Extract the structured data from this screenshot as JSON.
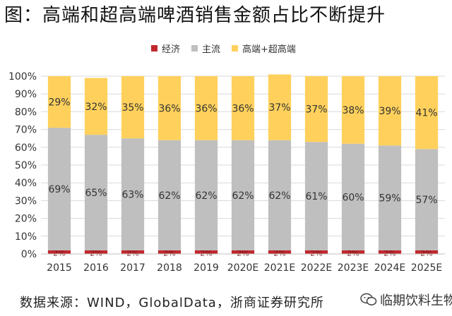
{
  "title": "图：高端和超高端啤酒销售金额占比不断提升",
  "source": "数据来源：WIND，GlobalData，浙商证券研究所",
  "watermark": "临期饮料生物",
  "colors": {
    "jingji": "#c0272d",
    "zhuliu": "#bfbfbf",
    "gaoduan": "#ffd15c",
    "grid": "#d9d9d9",
    "axis_text": "#333333"
  },
  "chart_data": {
    "type": "bar",
    "stacked": true,
    "categories": [
      "2015",
      "2016",
      "2017",
      "2018",
      "2019",
      "2020E",
      "2021E",
      "2022E",
      "2023E",
      "2024E",
      "2025E"
    ],
    "series": [
      {
        "name": "经济",
        "color": "#c0272d",
        "values": [
          2,
          2,
          2,
          2,
          2,
          2,
          2,
          2,
          2,
          2,
          2
        ],
        "labels": [
          "2%",
          "2%",
          "2%",
          "2%",
          "2%",
          "2%",
          "2%",
          "2%",
          "2%",
          "2%",
          "2%"
        ]
      },
      {
        "name": "主流",
        "color": "#bfbfbf",
        "values": [
          69,
          65,
          63,
          62,
          62,
          62,
          62,
          61,
          60,
          59,
          57
        ],
        "labels": [
          "69%",
          "65%",
          "63%",
          "62%",
          "62%",
          "62%",
          "62%",
          "61%",
          "60%",
          "59%",
          "57%"
        ]
      },
      {
        "name": "高端+超高端",
        "color": "#ffd15c",
        "values": [
          29,
          32,
          35,
          36,
          36,
          36,
          37,
          37,
          38,
          39,
          41
        ],
        "labels": [
          "29%",
          "32%",
          "35%",
          "36%",
          "36%",
          "36%",
          "37%",
          "37%",
          "38%",
          "39%",
          "41%"
        ]
      }
    ],
    "ylim": [
      0,
      100
    ],
    "yticks": [
      "0%",
      "10%",
      "20%",
      "30%",
      "40%",
      "50%",
      "60%",
      "70%",
      "80%",
      "90%",
      "100%"
    ],
    "grid": true,
    "legend": "top"
  }
}
